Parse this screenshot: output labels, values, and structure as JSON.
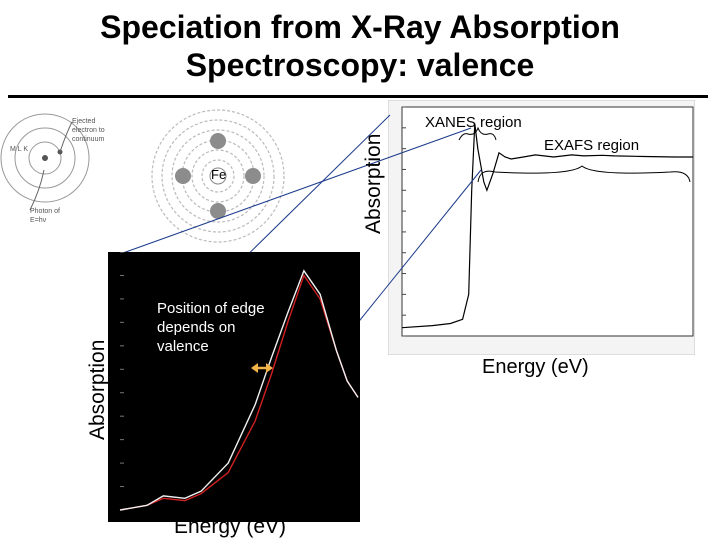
{
  "slide": {
    "title_line1": "Speciation from X-Ray Absorption",
    "title_line2": "Spectroscopy: valence"
  },
  "atom_diagrams": {
    "shells_label": "M L K",
    "ejected_note": "Ejected electron to continuum",
    "photon_note": "Photon of E=hν",
    "element_label": "Fe"
  },
  "right_spectrum": {
    "y_label": "Absorption",
    "x_label": "Energy (eV)",
    "xanes_label": "XANES region",
    "exafs_label": "EXAFS region"
  },
  "left_spectrum": {
    "y_label": "Absorption",
    "x_label": "Energy (eV)",
    "edge_note": "Position of edge depends on valence"
  },
  "colors": {
    "background": "#ffffff",
    "plot_dark": "#000000",
    "trace_white": "#f0f0f0",
    "trace_red": "#d02020",
    "arrow": "#f2b24a",
    "atom_gray": "#8c8c8c"
  },
  "chart_data": [
    {
      "type": "line",
      "title": "",
      "xlabel": "Energy (eV)",
      "ylabel": "Absorption",
      "x": [
        7000,
        7050,
        7080,
        7100,
        7110,
        7115,
        7120,
        7125,
        7130,
        7135,
        7140,
        7150,
        7160,
        7170,
        7180,
        7200,
        7220,
        7250,
        7280,
        7300,
        7330,
        7350,
        7400,
        7450,
        7480
      ],
      "series": [
        {
          "name": "spectrum",
          "values": [
            0.04,
            0.05,
            0.06,
            0.08,
            0.2,
            0.7,
            1.02,
            0.9,
            0.82,
            0.74,
            0.7,
            0.78,
            0.88,
            0.86,
            0.85,
            0.86,
            0.87,
            0.86,
            0.87,
            0.865,
            0.868,
            0.865,
            0.862,
            0.86,
            0.86
          ]
        }
      ],
      "xlim": [
        7000,
        7480
      ],
      "ylim": [
        0,
        1.1
      ],
      "annotations": [
        "XANES region",
        "EXAFS region"
      ]
    },
    {
      "type": "line",
      "title": "",
      "xlabel": "Energy (eV)",
      "ylabel": "Absorption",
      "x": [
        7100,
        7105,
        7108,
        7112,
        7115,
        7120,
        7125,
        7128,
        7131,
        7134,
        7137,
        7140,
        7142,
        7144
      ],
      "series": [
        {
          "name": "white trace",
          "values": [
            0.0,
            0.02,
            0.06,
            0.05,
            0.08,
            0.2,
            0.45,
            0.65,
            0.84,
            1.02,
            0.92,
            0.68,
            0.55,
            0.48
          ]
        },
        {
          "name": "red trace",
          "values": [
            0.0,
            0.02,
            0.05,
            0.04,
            0.07,
            0.16,
            0.38,
            0.58,
            0.8,
            1.0,
            0.9,
            0.68,
            0.55,
            0.48
          ]
        }
      ],
      "xlim": [
        7100,
        7144
      ],
      "ylim": [
        0,
        1.1
      ],
      "annotations": [
        "Position of edge depends on valence"
      ]
    }
  ]
}
